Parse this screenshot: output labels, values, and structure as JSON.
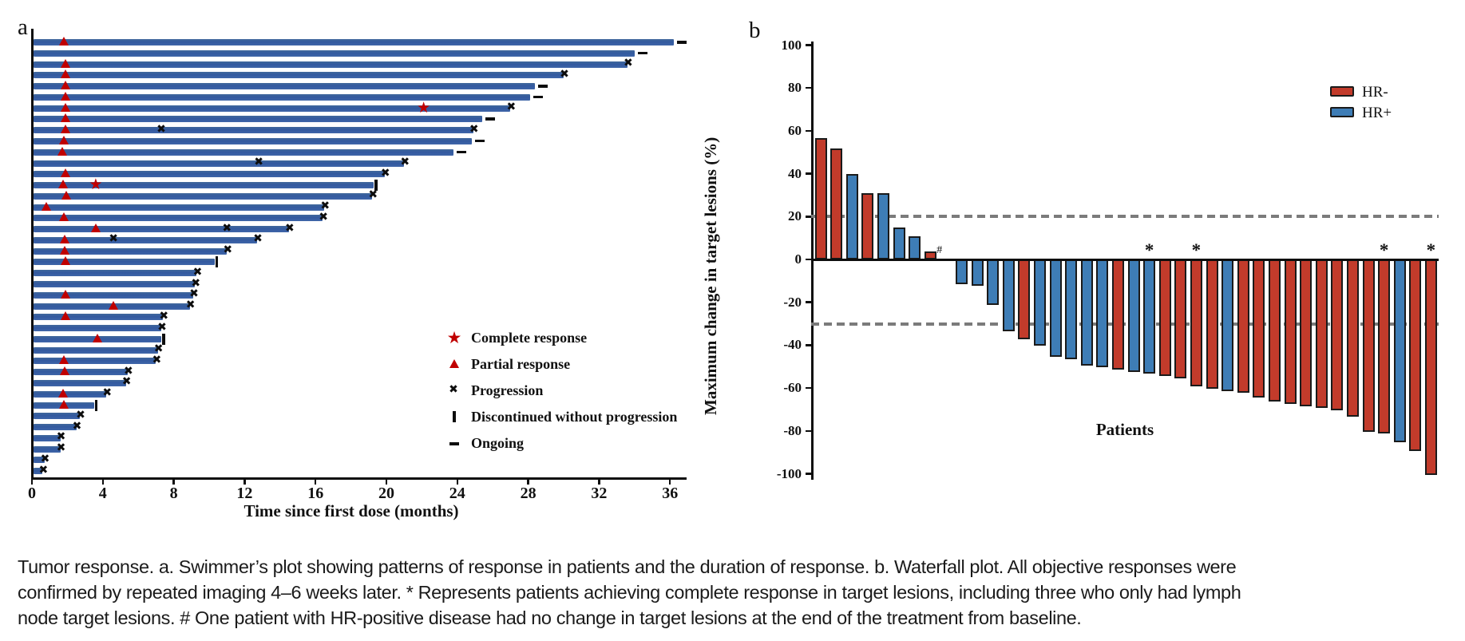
{
  "figure": {
    "panel_a_label": "a",
    "panel_b_label": "b"
  },
  "colors": {
    "swimmer_bar_blue": "#33599f",
    "marker_red": "#c00000",
    "marker_black": "#0d0d0d",
    "waterfall_hr_neg_red": "#c23b2b",
    "waterfall_hr_pos_blue": "#3e7db6",
    "bar_border_black": "#1a1a1a",
    "reference_dash_gray": "#7b7b7b"
  },
  "icons": {
    "complete_response_star": "★",
    "partial_response_triangle": "▲",
    "progression_x": "✖",
    "discontinued_tick": "▮",
    "ongoing_dash": "▬",
    "star_annotation": "*",
    "hash_annotation": "#"
  },
  "chart_data": [
    {
      "type": "swimmer",
      "xlabel": "Time since first dose (months)",
      "x_ticks": [
        0,
        4,
        8,
        12,
        16,
        20,
        24,
        28,
        32,
        36
      ],
      "x_range": [
        0,
        37
      ],
      "legend": [
        {
          "marker": "star",
          "label": "Complete response"
        },
        {
          "marker": "triangle",
          "label": "Partial response"
        },
        {
          "marker": "x",
          "label": "Progression"
        },
        {
          "marker": "vbar",
          "label": "Discontinued without progression"
        },
        {
          "marker": "dash",
          "label": "Ongoing"
        }
      ],
      "bars": [
        {
          "patient": 1,
          "months": 36.2,
          "partial_at": 1.8,
          "complete_at": null,
          "progression_mid": [],
          "end": "ongoing"
        },
        {
          "patient": 2,
          "months": 34.0,
          "partial_at": null,
          "complete_at": null,
          "progression_mid": [],
          "end": "ongoing"
        },
        {
          "patient": 3,
          "months": 33.6,
          "partial_at": 1.9,
          "complete_at": null,
          "progression_mid": [],
          "end": "progression"
        },
        {
          "patient": 4,
          "months": 30.0,
          "partial_at": 1.9,
          "complete_at": null,
          "progression_mid": [],
          "end": "progression"
        },
        {
          "patient": 5,
          "months": 28.4,
          "partial_at": 1.9,
          "complete_at": null,
          "progression_mid": [],
          "end": "ongoing"
        },
        {
          "patient": 6,
          "months": 28.1,
          "partial_at": 1.9,
          "complete_at": null,
          "progression_mid": [],
          "end": "ongoing"
        },
        {
          "patient": 7,
          "months": 27.0,
          "partial_at": 1.9,
          "complete_at": 22.1,
          "progression_mid": [],
          "end": "progression"
        },
        {
          "patient": 8,
          "months": 25.4,
          "partial_at": 1.9,
          "complete_at": null,
          "progression_mid": [],
          "end": "ongoing"
        },
        {
          "patient": 9,
          "months": 24.9,
          "partial_at": 1.9,
          "complete_at": null,
          "progression_mid": [
            7.3
          ],
          "end": "progression"
        },
        {
          "patient": 10,
          "months": 24.8,
          "partial_at": 1.8,
          "complete_at": null,
          "progression_mid": [],
          "end": "ongoing"
        },
        {
          "patient": 11,
          "months": 23.8,
          "partial_at": 1.7,
          "complete_at": null,
          "progression_mid": [],
          "end": "ongoing"
        },
        {
          "patient": 12,
          "months": 21.0,
          "partial_at": null,
          "complete_at": null,
          "progression_mid": [
            12.8
          ],
          "end": "progression"
        },
        {
          "patient": 13,
          "months": 19.9,
          "partial_at": 1.9,
          "complete_at": null,
          "progression_mid": [],
          "end": "progression"
        },
        {
          "patient": 14,
          "months": 19.3,
          "partial_at": 1.75,
          "complete_at": 3.6,
          "progression_mid": [],
          "end": "discontinued"
        },
        {
          "patient": 15,
          "months": 19.2,
          "partial_at": 1.95,
          "complete_at": null,
          "progression_mid": [],
          "end": "progression"
        },
        {
          "patient": 16,
          "months": 16.5,
          "partial_at": 0.8,
          "complete_at": null,
          "progression_mid": [],
          "end": "progression"
        },
        {
          "patient": 17,
          "months": 16.4,
          "partial_at": 1.8,
          "complete_at": null,
          "progression_mid": [],
          "end": "progression"
        },
        {
          "patient": 18,
          "months": 14.5,
          "partial_at": 3.6,
          "complete_at": null,
          "progression_mid": [
            11.0
          ],
          "end": "progression"
        },
        {
          "patient": 19,
          "months": 12.7,
          "partial_at": 1.85,
          "complete_at": null,
          "progression_mid": [
            4.6
          ],
          "end": "progression"
        },
        {
          "patient": 20,
          "months": 11.0,
          "partial_at": 1.85,
          "complete_at": null,
          "progression_mid": [],
          "end": "progression"
        },
        {
          "patient": 21,
          "months": 10.3,
          "partial_at": 1.9,
          "complete_at": null,
          "progression_mid": [],
          "end": "discontinued"
        },
        {
          "patient": 22,
          "months": 9.3,
          "partial_at": null,
          "complete_at": null,
          "progression_mid": [],
          "end": "progression"
        },
        {
          "patient": 23,
          "months": 9.2,
          "partial_at": null,
          "complete_at": null,
          "progression_mid": [],
          "end": "progression"
        },
        {
          "patient": 24,
          "months": 9.1,
          "partial_at": 1.9,
          "complete_at": null,
          "progression_mid": [],
          "end": "progression"
        },
        {
          "patient": 25,
          "months": 8.9,
          "partial_at": 4.6,
          "complete_at": null,
          "progression_mid": [],
          "end": "progression"
        },
        {
          "patient": 26,
          "months": 7.4,
          "partial_at": 1.9,
          "complete_at": null,
          "progression_mid": [],
          "end": "progression"
        },
        {
          "patient": 27,
          "months": 7.3,
          "partial_at": null,
          "complete_at": null,
          "progression_mid": [],
          "end": "progression"
        },
        {
          "patient": 28,
          "months": 7.3,
          "partial_at": 3.7,
          "complete_at": null,
          "progression_mid": [],
          "end": "discontinued"
        },
        {
          "patient": 29,
          "months": 7.1,
          "partial_at": null,
          "complete_at": null,
          "progression_mid": [],
          "end": "progression"
        },
        {
          "patient": 30,
          "months": 7.0,
          "partial_at": 1.8,
          "complete_at": null,
          "progression_mid": [],
          "end": "progression"
        },
        {
          "patient": 31,
          "months": 5.4,
          "partial_at": 1.85,
          "complete_at": null,
          "progression_mid": [],
          "end": "progression"
        },
        {
          "patient": 32,
          "months": 5.3,
          "partial_at": null,
          "complete_at": null,
          "progression_mid": [],
          "end": "progression"
        },
        {
          "patient": 33,
          "months": 4.2,
          "partial_at": 1.75,
          "complete_at": null,
          "progression_mid": [],
          "end": "progression"
        },
        {
          "patient": 34,
          "months": 3.5,
          "partial_at": 1.8,
          "complete_at": null,
          "progression_mid": [],
          "end": "discontinued"
        },
        {
          "patient": 35,
          "months": 2.7,
          "partial_at": null,
          "complete_at": null,
          "progression_mid": [],
          "end": "progression"
        },
        {
          "patient": 36,
          "months": 2.5,
          "partial_at": null,
          "complete_at": null,
          "progression_mid": [],
          "end": "progression"
        },
        {
          "patient": 37,
          "months": 1.6,
          "partial_at": null,
          "complete_at": null,
          "progression_mid": [],
          "end": "progression"
        },
        {
          "patient": 38,
          "months": 1.6,
          "partial_at": null,
          "complete_at": null,
          "progression_mid": [],
          "end": "progression"
        },
        {
          "patient": 39,
          "months": 0.7,
          "partial_at": null,
          "complete_at": null,
          "progression_mid": [],
          "end": "progression"
        },
        {
          "patient": 40,
          "months": 0.6,
          "partial_at": null,
          "complete_at": null,
          "progression_mid": [],
          "end": "progression"
        }
      ]
    },
    {
      "type": "waterfall",
      "ylabel": "Maximum change in target lesions (%)",
      "xlabel": "Patients",
      "y_ticks": [
        100,
        80,
        60,
        40,
        20,
        0,
        -20,
        -40,
        -60,
        -80,
        -100
      ],
      "ylim": [
        -100,
        100
      ],
      "reference_lines": [
        20,
        -30
      ],
      "legend": [
        {
          "label": "HR-",
          "color": "#c23b2b"
        },
        {
          "label": "HR+",
          "color": "#3e7db6"
        }
      ],
      "patients": [
        {
          "value": 56,
          "group": "HR-",
          "star": false,
          "hash": false
        },
        {
          "value": 51,
          "group": "HR-",
          "star": false,
          "hash": false
        },
        {
          "value": 39,
          "group": "HR+",
          "star": false,
          "hash": false
        },
        {
          "value": 30,
          "group": "HR-",
          "star": false,
          "hash": false
        },
        {
          "value": 30,
          "group": "HR+",
          "star": false,
          "hash": false
        },
        {
          "value": 14,
          "group": "HR+",
          "star": false,
          "hash": false
        },
        {
          "value": 10,
          "group": "HR+",
          "star": false,
          "hash": false
        },
        {
          "value": 3,
          "group": "HR-",
          "star": false,
          "hash": false
        },
        {
          "value": 0,
          "group": "HR+",
          "star": false,
          "hash": true
        },
        {
          "value": -11,
          "group": "HR+",
          "star": false,
          "hash": false
        },
        {
          "value": -12,
          "group": "HR+",
          "star": false,
          "hash": false
        },
        {
          "value": -21,
          "group": "HR+",
          "star": false,
          "hash": false
        },
        {
          "value": -33,
          "group": "HR+",
          "star": false,
          "hash": false
        },
        {
          "value": -37,
          "group": "HR-",
          "star": false,
          "hash": false
        },
        {
          "value": -40,
          "group": "HR+",
          "star": false,
          "hash": false
        },
        {
          "value": -45,
          "group": "HR+",
          "star": false,
          "hash": false
        },
        {
          "value": -46,
          "group": "HR+",
          "star": false,
          "hash": false
        },
        {
          "value": -49,
          "group": "HR+",
          "star": false,
          "hash": false
        },
        {
          "value": -50,
          "group": "HR+",
          "star": false,
          "hash": false
        },
        {
          "value": -51,
          "group": "HR-",
          "star": false,
          "hash": false
        },
        {
          "value": -52,
          "group": "HR+",
          "star": false,
          "hash": false
        },
        {
          "value": -53,
          "group": "HR+",
          "star": true,
          "hash": false
        },
        {
          "value": -54,
          "group": "HR-",
          "star": false,
          "hash": false
        },
        {
          "value": -55,
          "group": "HR-",
          "star": false,
          "hash": false
        },
        {
          "value": -59,
          "group": "HR-",
          "star": true,
          "hash": false
        },
        {
          "value": -60,
          "group": "HR-",
          "star": false,
          "hash": false
        },
        {
          "value": -61,
          "group": "HR+",
          "star": false,
          "hash": false
        },
        {
          "value": -62,
          "group": "HR-",
          "star": false,
          "hash": false
        },
        {
          "value": -64,
          "group": "HR-",
          "star": false,
          "hash": false
        },
        {
          "value": -66,
          "group": "HR-",
          "star": false,
          "hash": false
        },
        {
          "value": -67,
          "group": "HR-",
          "star": false,
          "hash": false
        },
        {
          "value": -68,
          "group": "HR-",
          "star": false,
          "hash": false
        },
        {
          "value": -69,
          "group": "HR-",
          "star": false,
          "hash": false
        },
        {
          "value": -70,
          "group": "HR-",
          "star": false,
          "hash": false
        },
        {
          "value": -73,
          "group": "HR-",
          "star": false,
          "hash": false
        },
        {
          "value": -80,
          "group": "HR-",
          "star": false,
          "hash": false
        },
        {
          "value": -81,
          "group": "HR-",
          "star": true,
          "hash": false
        },
        {
          "value": -85,
          "group": "HR+",
          "star": false,
          "hash": false
        },
        {
          "value": -89,
          "group": "HR-",
          "star": false,
          "hash": false
        },
        {
          "value": -100,
          "group": "HR-",
          "star": true,
          "hash": false
        }
      ]
    }
  ],
  "caption": {
    "lines": [
      "Tumor response. a. Swimmer’s plot showing patterns of response in patients and the duration of response. b. Waterfall plot. All objective responses were",
      "confirmed by repeated imaging 4–6 weeks later. * Represents patients achieving complete response in target lesions, including three who only had lymph",
      "node target lesions. # One patient with HR-positive disease had no change in target lesions at the end of the treatment from baseline."
    ]
  }
}
